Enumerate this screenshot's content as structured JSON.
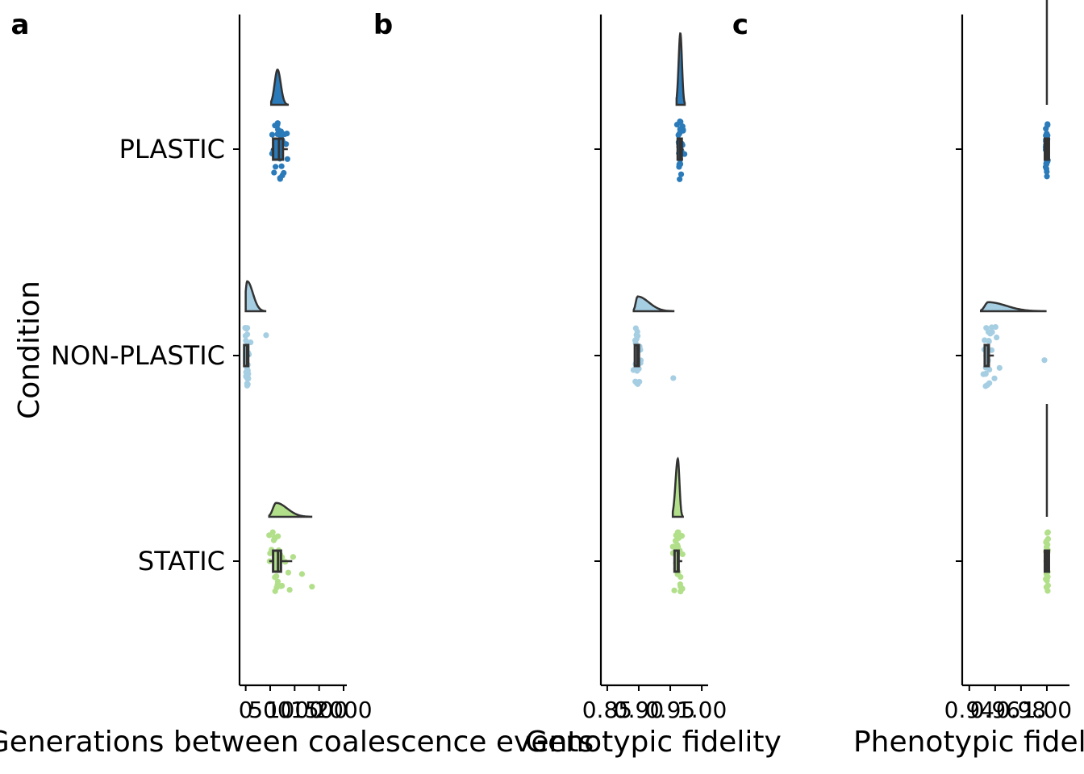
{
  "y_axis_title": "Condition",
  "conditions": [
    "PLASTIC",
    "NON-PLASTIC",
    "STATIC"
  ],
  "colors": {
    "PLASTIC": "#2b7bba",
    "NON-PLASTIC": "#a6cee3",
    "STATIC": "#b2df8a",
    "outline": "#333333",
    "axis": "#000000"
  },
  "chart_data": [
    {
      "panel": "a",
      "type": "raincloud",
      "xlabel": "Generations between coalescence events",
      "xticks": [
        "0",
        "500",
        "1000",
        "1500",
        "2000"
      ],
      "xtick_values": [
        0,
        500,
        1000,
        1500,
        2000
      ],
      "xlim": [
        -60,
        2000
      ],
      "series": [
        {
          "category": "PLASTIC",
          "median": 680,
          "q1": 560,
          "q3": 760,
          "whisker": [
            520,
            860
          ],
          "density_span": [
            520,
            860
          ],
          "density_peak": 650,
          "points": [
            540,
            560,
            570,
            600,
            610,
            620,
            640,
            650,
            650,
            660,
            670,
            680,
            690,
            700,
            700,
            710,
            720,
            730,
            740,
            750,
            760,
            770,
            790,
            800,
            820,
            840,
            860,
            600,
            630,
            690
          ]
        },
        {
          "category": "NON-PLASTIC",
          "median": 30,
          "q1": 10,
          "q3": 40,
          "whisker": [
            0,
            80
          ],
          "density_span": [
            0,
            400
          ],
          "density_peak": 30,
          "points": [
            0,
            5,
            10,
            10,
            15,
            20,
            20,
            25,
            25,
            30,
            30,
            30,
            35,
            35,
            40,
            40,
            45,
            50,
            55,
            60,
            70,
            80,
            20,
            15,
            25,
            35,
            30,
            10,
            5,
            400
          ]
        },
        {
          "category": "STATIC",
          "median": 660,
          "q1": 560,
          "q3": 720,
          "whisker": [
            480,
            950
          ],
          "density_span": [
            480,
            1340
          ],
          "density_peak": 620,
          "points": [
            480,
            500,
            520,
            540,
            560,
            570,
            580,
            600,
            610,
            620,
            630,
            640,
            650,
            660,
            670,
            680,
            690,
            700,
            710,
            720,
            740,
            760,
            800,
            850,
            900,
            950,
            1150,
            1340,
            600,
            650
          ]
        }
      ]
    },
    {
      "panel": "b",
      "type": "raincloud",
      "xlabel": "Genotypic fidelity",
      "xticks": [
        "0.85",
        "0.90",
        "0.95",
        "1.00"
      ],
      "xtick_values": [
        0.85,
        0.9,
        0.95,
        1.0
      ],
      "xlim": [
        0.845,
        1.005
      ],
      "series": [
        {
          "category": "PLASTIC",
          "median": 0.966,
          "q1": 0.965,
          "q3": 0.967,
          "whisker": [
            0.961,
            0.971
          ],
          "density_span": [
            0.96,
            0.973
          ],
          "density_peak": 0.966,
          "points": [
            0.961,
            0.962,
            0.963,
            0.963,
            0.964,
            0.964,
            0.965,
            0.965,
            0.965,
            0.966,
            0.966,
            0.966,
            0.966,
            0.967,
            0.967,
            0.967,
            0.968,
            0.968,
            0.969,
            0.97,
            0.971,
            0.972,
            0.963,
            0.965,
            0.967,
            0.966,
            0.964,
            0.968,
            0.965,
            0.966
          ]
        },
        {
          "category": "NON-PLASTIC",
          "median": 0.898,
          "q1": 0.897,
          "q3": 0.899,
          "whisker": [
            0.894,
            0.902
          ],
          "density_span": [
            0.892,
            0.955
          ],
          "density_peak": 0.898,
          "points": [
            0.893,
            0.894,
            0.895,
            0.895,
            0.896,
            0.896,
            0.897,
            0.897,
            0.897,
            0.898,
            0.898,
            0.898,
            0.898,
            0.899,
            0.899,
            0.899,
            0.9,
            0.9,
            0.901,
            0.902,
            0.903,
            0.904,
            0.896,
            0.897,
            0.899,
            0.898,
            0.895,
            0.9,
            0.955,
            0.898
          ]
        },
        {
          "category": "STATIC",
          "median": 0.962,
          "q1": 0.96,
          "q3": 0.964,
          "whisker": [
            0.955,
            0.969
          ],
          "density_span": [
            0.954,
            0.97
          ],
          "density_peak": 0.962,
          "points": [
            0.954,
            0.955,
            0.956,
            0.957,
            0.958,
            0.959,
            0.959,
            0.96,
            0.96,
            0.961,
            0.961,
            0.962,
            0.962,
            0.962,
            0.963,
            0.963,
            0.963,
            0.964,
            0.964,
            0.965,
            0.965,
            0.966,
            0.967,
            0.968,
            0.969,
            0.97,
            0.958,
            0.961,
            0.964,
            0.966
          ]
        }
      ]
    },
    {
      "panel": "c",
      "type": "raincloud",
      "xlabel": "Phenotypic fidelity",
      "xticks": [
        "0.94",
        "0.96",
        "0.98",
        "1.00"
      ],
      "xtick_values": [
        0.94,
        0.96,
        0.98,
        1.0
      ],
      "xlim": [
        0.937,
        1.015
      ],
      "series": [
        {
          "category": "PLASTIC",
          "median": 1.0,
          "q1": 1.0,
          "q3": 1.0,
          "whisker": [
            1.0,
            1.0
          ],
          "density_span": [
            1.0,
            1.0
          ],
          "density_peak": 1.0,
          "points": [
            1,
            1,
            1,
            1,
            1,
            1,
            1,
            1,
            1,
            1,
            1,
            1,
            1,
            1,
            1,
            1,
            1,
            1,
            1,
            1,
            1,
            1,
            1,
            1,
            1,
            1,
            1,
            1,
            1,
            1
          ]
        },
        {
          "category": "NON-PLASTIC",
          "median": 0.9545,
          "q1": 0.9535,
          "q3": 0.9555,
          "whisker": [
            0.951,
            0.959
          ],
          "density_span": [
            0.949,
            0.999
          ],
          "density_peak": 0.9545,
          "points": [
            0.95,
            0.951,
            0.952,
            0.952,
            0.953,
            0.953,
            0.953,
            0.954,
            0.954,
            0.954,
            0.955,
            0.955,
            0.955,
            0.955,
            0.956,
            0.956,
            0.957,
            0.957,
            0.958,
            0.959,
            0.96,
            0.962,
            0.953,
            0.954,
            0.955,
            0.956,
            0.954,
            0.955,
            0.999,
            0.963
          ]
        },
        {
          "category": "STATIC",
          "median": 1.0,
          "q1": 1.0,
          "q3": 1.0,
          "whisker": [
            1.0,
            1.0
          ],
          "density_span": [
            1.0,
            1.0
          ],
          "density_peak": 1.0,
          "points": [
            1,
            1,
            1,
            1,
            1,
            1,
            1,
            1,
            1,
            1,
            1,
            1,
            1,
            1,
            1,
            1,
            1,
            1,
            1,
            1,
            1,
            1,
            1,
            1,
            1,
            1,
            1,
            1,
            1,
            1
          ]
        }
      ]
    }
  ]
}
